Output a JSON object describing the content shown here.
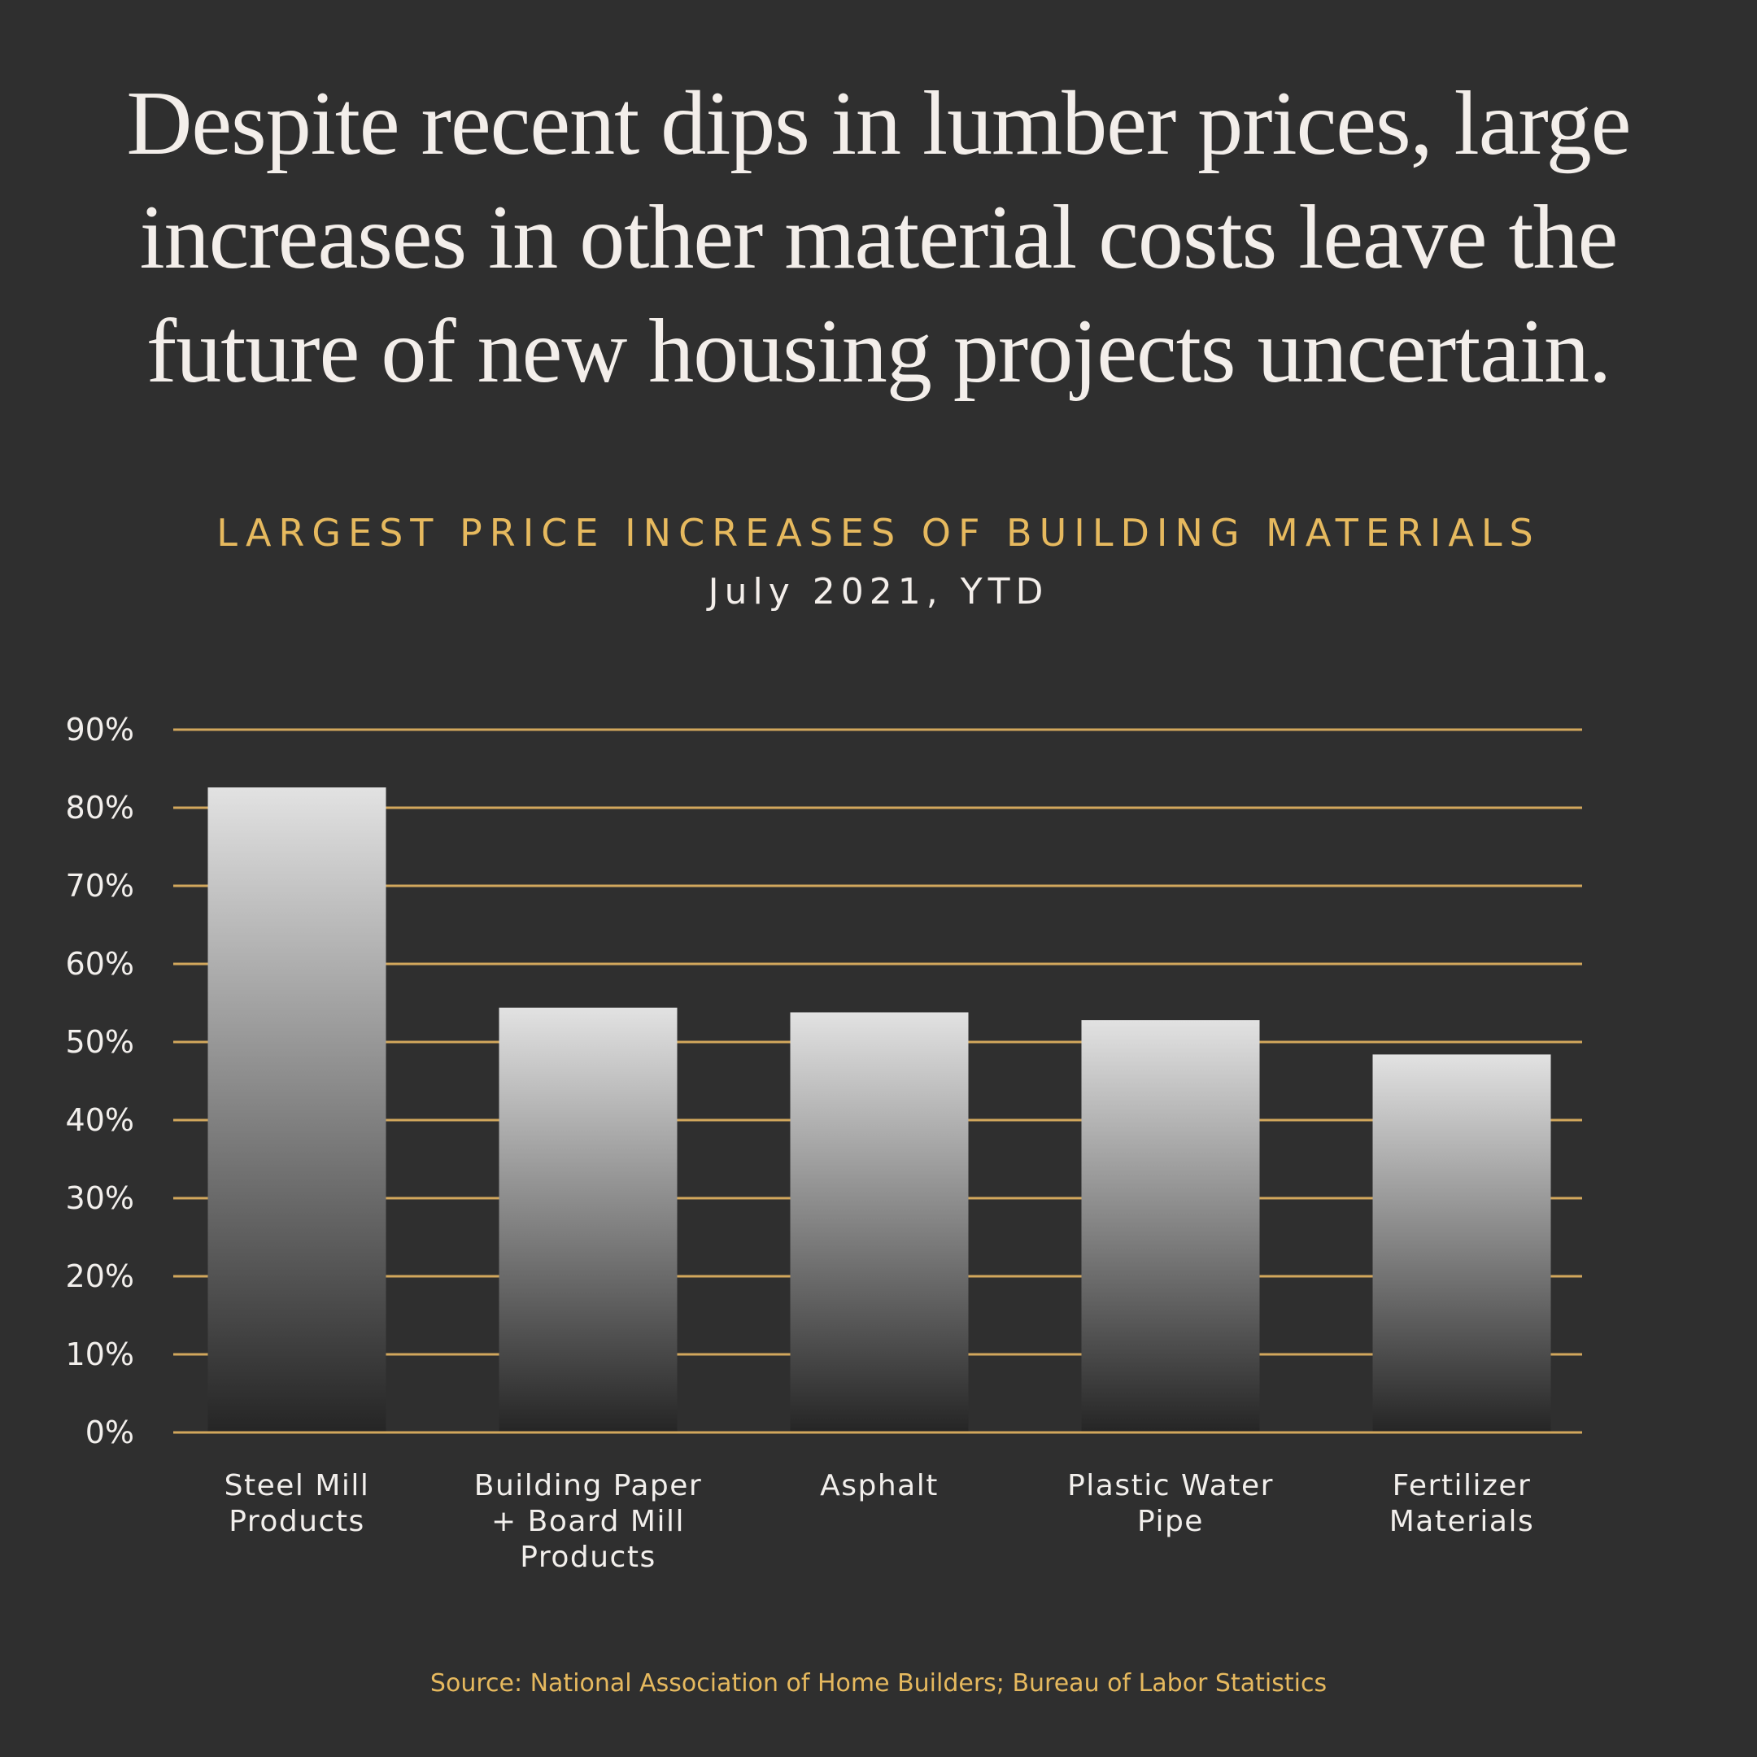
{
  "headline": {
    "lines": [
      "Despite recent dips in lumber prices, large",
      "increases in other material costs leave the",
      "future of new housing projects uncertain."
    ]
  },
  "chart_data": {
    "type": "bar",
    "title": "LARGEST PRICE INCREASES OF BUILDING MATERIALS",
    "subtitle": "July 2021, YTD",
    "categories": [
      [
        "Steel Mill",
        "Products"
      ],
      [
        "Building Paper",
        "+ Board Mill",
        "Products"
      ],
      [
        "Asphalt"
      ],
      [
        "Plastic Water",
        "Pipe"
      ],
      [
        "Fertilizer",
        "Materials"
      ]
    ],
    "values": [
      82.6,
      54.4,
      53.8,
      52.8,
      48.4
    ],
    "ylim": [
      0,
      90
    ],
    "yticks": [
      0,
      10,
      20,
      30,
      40,
      50,
      60,
      70,
      80,
      90
    ],
    "ytick_labels": [
      "0%",
      "10%",
      "20%",
      "30%",
      "40%",
      "50%",
      "60%",
      "70%",
      "80%",
      "90%"
    ],
    "grid": true,
    "xlabel": "",
    "ylabel": "",
    "colors": {
      "background": "#2f2f2f",
      "grid": "#d2a75c",
      "bar_top": "#e2e2e2",
      "bar_bottom": "#252525",
      "title": "#e6b95e"
    }
  },
  "source": "Source: National Association of Home Builders; Bureau of Labor Statistics"
}
